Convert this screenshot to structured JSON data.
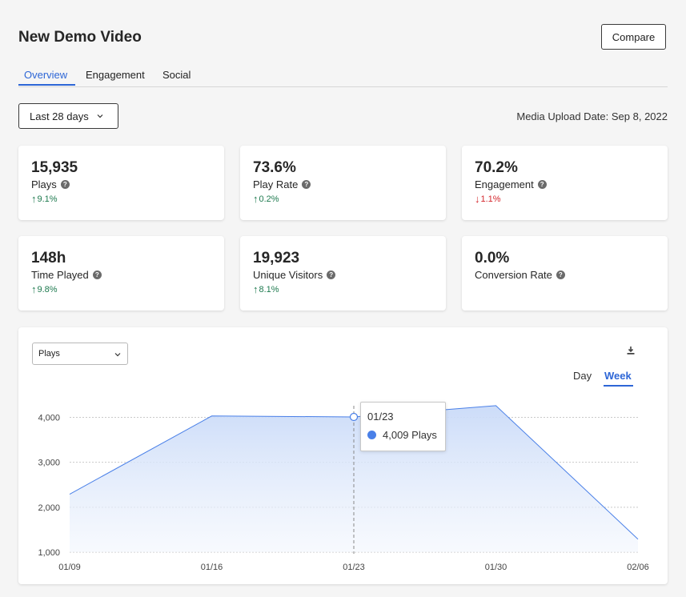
{
  "header": {
    "title": "New Demo Video",
    "compare_label": "Compare"
  },
  "tabs": [
    {
      "label": "Overview",
      "active": true
    },
    {
      "label": "Engagement",
      "active": false
    },
    {
      "label": "Social",
      "active": false
    }
  ],
  "filters": {
    "range_label": "Last 28 days",
    "upload_date": "Media Upload Date: Sep 8, 2022"
  },
  "cards": [
    {
      "value": "15,935",
      "label": "Plays",
      "delta": "9.1%",
      "direction": "up"
    },
    {
      "value": "73.6%",
      "label": "Play Rate",
      "delta": "0.2%",
      "direction": "up"
    },
    {
      "value": "70.2%",
      "label": "Engagement",
      "delta": "1.1%",
      "direction": "down"
    },
    {
      "value": "148h",
      "label": "Time Played",
      "delta": "9.8%",
      "direction": "up"
    },
    {
      "value": "19,923",
      "label": "Unique Visitors",
      "delta": "8.1%",
      "direction": "up"
    },
    {
      "value": "0.0%",
      "label": "Conversion Rate",
      "delta": "",
      "direction": "none"
    }
  ],
  "chart_panel": {
    "metric_select": "Plays",
    "granularity": {
      "day": "Day",
      "week": "Week",
      "selected": "Week"
    },
    "tooltip": {
      "date": "01/23",
      "text": "4,009 Plays"
    }
  },
  "colors": {
    "accent": "#2d66d6",
    "up": "#1e7a4f",
    "down": "#d4262c",
    "series": "#4a80e8"
  },
  "chart_data": {
    "type": "area",
    "x": [
      "01/09",
      "01/16",
      "01/23",
      "01/30",
      "02/06"
    ],
    "series": [
      {
        "name": "Plays",
        "values": [
          2290,
          4030,
          4009,
          4260,
          1290
        ]
      }
    ],
    "y_ticks": [
      "1,000",
      "2,000",
      "3,000",
      "4,000"
    ],
    "ylim": [
      1000,
      4400
    ],
    "grid": true,
    "highlighted_x": "01/23"
  }
}
